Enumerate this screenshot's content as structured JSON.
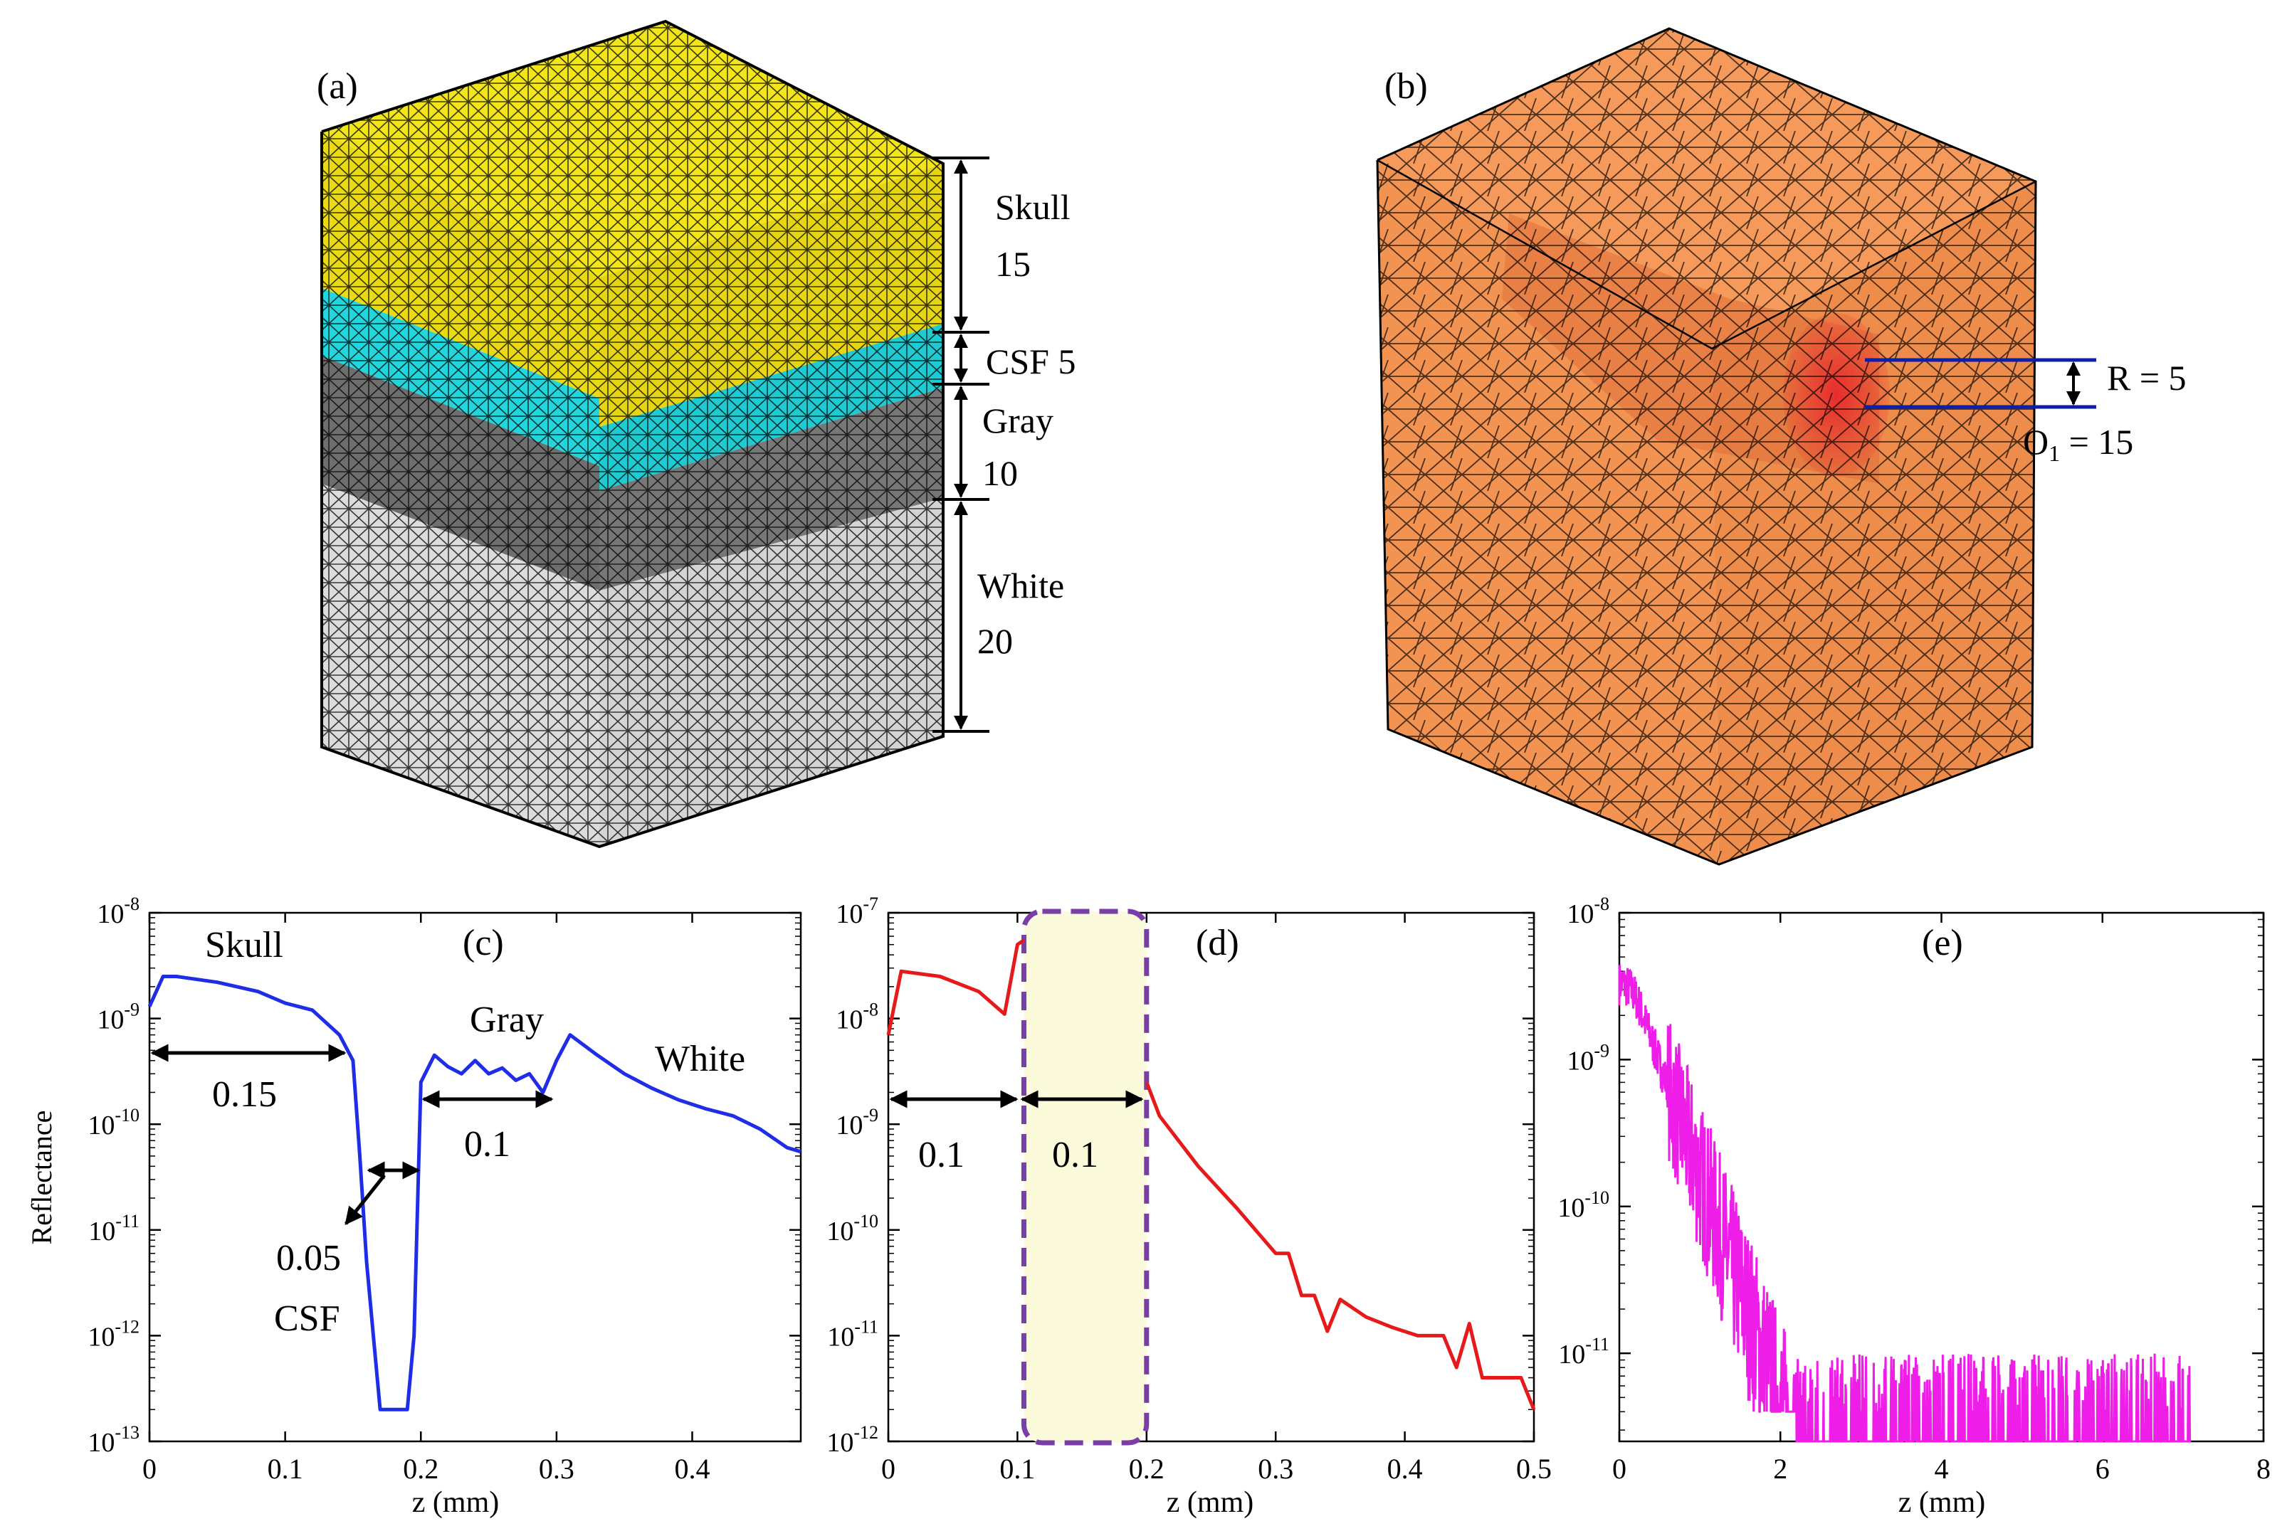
{
  "panel_a": {
    "label": "(a)",
    "layers": [
      {
        "name": "Skull",
        "thickness": "15",
        "color": "#f2e51a"
      },
      {
        "name": "CSF",
        "thickness": "5",
        "color": "#22d6dd"
      },
      {
        "name": "Gray",
        "thickness": "10",
        "color": "#6e6e6e"
      },
      {
        "name": "White",
        "thickness": "20",
        "color": "#d9d9d9"
      }
    ],
    "csf_text": "CSF 5"
  },
  "panel_b": {
    "label": "(b)",
    "r_text": "R = 5",
    "o_text": "O",
    "o_sub": "1",
    "o_val": " = 15",
    "color": "#f59a5a",
    "line_color": "#0b1fa8"
  },
  "chart_data": [
    {
      "type": "line",
      "label": "(c)",
      "scale": "log",
      "xlabel": "z (mm)",
      "ylabel": "Reflectance",
      "xlim": [
        0,
        0.48
      ],
      "ylim_exp": [
        -13,
        -8
      ],
      "xticks": [
        "0",
        "0.1",
        "0.2",
        "0.3",
        "0.4"
      ],
      "yticks": [
        "-13",
        "-12",
        "-11",
        "-10",
        "-9",
        "-8"
      ],
      "color": "#1f2ee6",
      "x": [
        0,
        0.01,
        0.02,
        0.05,
        0.08,
        0.1,
        0.12,
        0.14,
        0.15,
        0.155,
        0.16,
        0.165,
        0.17,
        0.19,
        0.195,
        0.2,
        0.21,
        0.22,
        0.23,
        0.24,
        0.25,
        0.26,
        0.27,
        0.28,
        0.29,
        0.3,
        0.31,
        0.33,
        0.35,
        0.37,
        0.39,
        0.41,
        0.43,
        0.45,
        0.47,
        0.48
      ],
      "y": [
        1.3e-09,
        2.5e-09,
        2.5e-09,
        2.2e-09,
        1.8e-09,
        1.4e-09,
        1.2e-09,
        7e-10,
        4e-10,
        5e-11,
        5e-12,
        1e-12,
        2e-13,
        2e-13,
        1e-12,
        2.5e-10,
        4.5e-10,
        3.5e-10,
        3e-10,
        4e-10,
        3e-10,
        3.4e-10,
        2.6e-10,
        3e-10,
        2e-10,
        4e-10,
        7e-10,
        4.5e-10,
        3e-10,
        2.2e-10,
        1.7e-10,
        1.4e-10,
        1.2e-10,
        9e-11,
        6e-11,
        5.5e-11
      ],
      "annotations": {
        "skull": "Skull",
        "gray": "Gray",
        "white": "White",
        "a1": "0.15",
        "a2": "0.1",
        "a3": "0.05",
        "csf": "CSF"
      }
    },
    {
      "type": "line",
      "label": "(d)",
      "scale": "log",
      "xlabel": "z (mm)",
      "ylabel": "",
      "xlim": [
        0,
        0.5
      ],
      "ylim_exp": [
        -12,
        -7
      ],
      "xticks": [
        "0",
        "0.1",
        "0.2",
        "0.3",
        "0.4",
        "0.5"
      ],
      "yticks": [
        "-12",
        "-11",
        "-10",
        "-9",
        "-8",
        "-7"
      ],
      "color": "#e61a1a",
      "segments": [
        {
          "x": [
            0,
            0.01,
            0.04,
            0.07,
            0.09,
            0.1,
            0.105
          ],
          "y": [
            7e-09,
            2.8e-08,
            2.5e-08,
            1.8e-08,
            1.1e-08,
            5e-08,
            5.5e-08
          ]
        },
        {
          "x": [
            0.2,
            0.21,
            0.24,
            0.27,
            0.3,
            0.31,
            0.32,
            0.33,
            0.34,
            0.35,
            0.37,
            0.39,
            0.41,
            0.43,
            0.44,
            0.45,
            0.46,
            0.48,
            0.49,
            0.5
          ],
          "y": [
            2.5e-09,
            1.2e-09,
            4e-10,
            1.6e-10,
            6e-11,
            6e-11,
            2.4e-11,
            2.4e-11,
            1.1e-11,
            2.2e-11,
            1.5e-11,
            1.2e-11,
            1e-11,
            1e-11,
            5e-12,
            1.3e-11,
            4e-12,
            4e-12,
            4e-12,
            2e-12
          ]
        }
      ],
      "band": [
        0.105,
        0.2
      ],
      "band_fill": "#fbfbdc",
      "band_stroke": "#7a3ea8",
      "annotations": {
        "a1": "0.1",
        "a2": "0.1"
      }
    },
    {
      "type": "line",
      "label": "(e)",
      "scale": "log",
      "xlabel": "z (mm)",
      "ylabel": "",
      "xlim": [
        0,
        8
      ],
      "ylim_exp": [
        -11.6,
        -8
      ],
      "xticks": [
        "0",
        "2",
        "4",
        "6",
        "8"
      ],
      "yticks": [
        "-11",
        "-10",
        "-9",
        "-8"
      ],
      "color": "#ee1ee8",
      "decay": {
        "peak": 3.3e-09,
        "halfwidth": 0.25,
        "e_fold": 0.28,
        "floor": 4e-12,
        "end": 7.1
      }
    }
  ]
}
